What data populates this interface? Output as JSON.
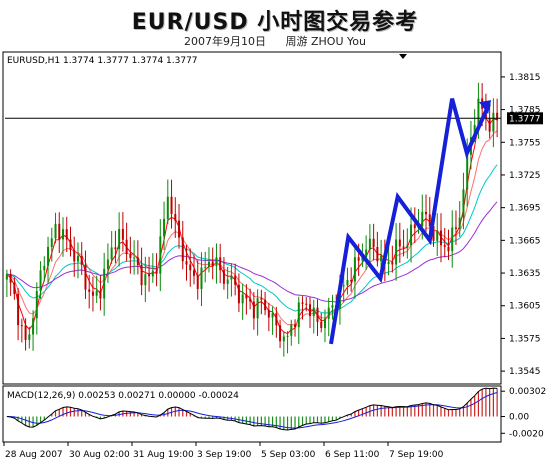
{
  "header": {
    "title": "EUR/USD 小时图交易参考",
    "date": "2007年9月10日",
    "author": "周游 ZHOU You"
  },
  "chart_data": [
    {
      "type": "candlestick",
      "symbol_info": "EURUSD,H1  1.3774 1.3777 1.3774 1.3777",
      "current_price_label": "1.3777",
      "current_price": 1.3777,
      "ylim": [
        1.3535,
        1.3825
      ],
      "yticks": [
        "1.3815",
        "1.3785",
        "1.3755",
        "1.3725",
        "1.3695",
        "1.3665",
        "1.3635",
        "1.3605",
        "1.3575",
        "1.3545"
      ],
      "ytick_values": [
        1.3815,
        1.3785,
        1.3755,
        1.3725,
        1.3695,
        1.3665,
        1.3635,
        1.3605,
        1.3575,
        1.3545
      ],
      "xticks": [
        "28 Aug 2007",
        "30 Aug 02:00",
        "31 Aug 19:00",
        "3 Sep 19:00",
        "5 Sep 03:00",
        "6 Sep 11:00",
        "7 Sep 19:00"
      ],
      "bars": 132,
      "close_path": [
        1.363,
        1.362,
        1.359,
        1.357,
        1.359,
        1.362,
        1.365,
        1.366,
        1.368,
        1.367,
        1.366,
        1.365,
        1.364,
        1.362,
        1.361,
        1.362,
        1.364,
        1.366,
        1.367,
        1.366,
        1.365,
        1.364,
        1.363,
        1.363,
        1.364,
        1.367,
        1.371,
        1.368,
        1.366,
        1.364,
        1.363,
        1.363,
        1.364,
        1.365,
        1.364,
        1.363,
        1.363,
        1.362,
        1.361,
        1.361,
        1.36,
        1.361,
        1.36,
        1.359,
        1.358,
        1.357,
        1.359,
        1.36,
        1.361,
        1.36,
        1.359,
        1.359,
        1.36,
        1.361,
        1.362,
        1.363,
        1.364,
        1.365,
        1.366,
        1.366,
        1.365,
        1.364,
        1.365,
        1.366,
        1.366,
        1.367,
        1.368,
        1.369,
        1.368,
        1.367,
        1.366,
        1.366,
        1.367,
        1.369,
        1.373,
        1.377,
        1.379,
        1.378,
        1.377,
        1.3777
      ],
      "moving_averages": [
        {
          "color": "#ff0000",
          "smoothing": 0.45
        },
        {
          "color": "#ff7070",
          "smoothing": 0.22
        },
        {
          "color": "#00c8c8",
          "smoothing": 0.1
        },
        {
          "color": "#9b30d9",
          "smoothing": 0.05
        }
      ],
      "projection_path": [
        [
          1.357,
          0.66
        ],
        [
          1.3668,
          0.695
        ],
        [
          1.363,
          0.76
        ],
        [
          1.3705,
          0.795
        ],
        [
          1.3665,
          0.86
        ],
        [
          1.3795,
          0.905
        ],
        [
          1.3745,
          0.935
        ],
        [
          1.379,
          0.98
        ]
      ]
    },
    {
      "type": "bar",
      "indicator_label": "MACD(12,26,9) 0.00253 0.00271 0.00000 -0.00024",
      "yticks": [
        "0.00302",
        "0.00",
        "-0.0020"
      ],
      "ytick_values": [
        0.00302,
        0.0,
        -0.002
      ],
      "ylim": [
        -0.0028,
        0.0034
      ]
    }
  ]
}
